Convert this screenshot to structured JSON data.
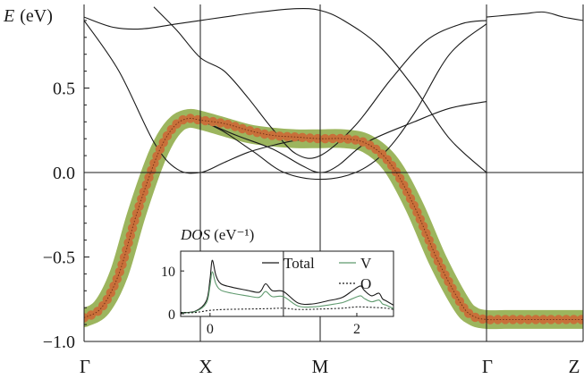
{
  "chart_data": [
    {
      "type": "line",
      "title": "",
      "xlabel": "",
      "ylabel_main": "E",
      "ylabel_unit": "(eV)",
      "ylim": [
        -1.0,
        0.92
      ],
      "grid": false,
      "k_points": [
        {
          "label": "Γ",
          "pos": 0.0
        },
        {
          "label": "X",
          "pos": 1.0
        },
        {
          "label": "M",
          "pos": 2.0
        },
        {
          "label": "Γ",
          "pos": 3.414
        },
        {
          "label": "Z",
          "pos": 4.4
        }
      ],
      "y_ticks": [
        {
          "value": 0.5,
          "label": "0.5"
        },
        {
          "value": 0.0,
          "label": "0.0"
        },
        {
          "value": -0.5,
          "label": "−0.5"
        },
        {
          "value": -1.0,
          "label": "−1.0"
        }
      ],
      "series": [
        {
          "kind": "fat-band",
          "color": "#9cb55e",
          "x": [
            0,
            0.15,
            0.3,
            0.45,
            0.6,
            0.7,
            0.8,
            0.9,
            1.0,
            1.2,
            1.4,
            1.6,
            1.8,
            2.0,
            2.2,
            2.4,
            2.6,
            2.8,
            3.0,
            3.2,
            3.3,
            3.414,
            3.6,
            4.0,
            4.4
          ],
          "y": [
            -0.86,
            -0.8,
            -0.6,
            -0.25,
            0.05,
            0.2,
            0.29,
            0.32,
            0.31,
            0.27,
            0.23,
            0.21,
            0.2,
            0.2,
            0.2,
            0.17,
            0.05,
            -0.2,
            -0.52,
            -0.78,
            -0.85,
            -0.87,
            -0.87,
            -0.87,
            -0.87
          ]
        },
        {
          "kind": "orbital-markers",
          "color": "#c8703a",
          "x": [
            0,
            0.15,
            0.3,
            0.45,
            0.6,
            0.7,
            0.8,
            0.9,
            1.0,
            1.2,
            1.4,
            1.6,
            1.8,
            2.0,
            2.2,
            2.4,
            2.6,
            2.8,
            3.0,
            3.2,
            3.3,
            3.414,
            3.6,
            4.0,
            4.4
          ],
          "y": [
            -0.86,
            -0.8,
            -0.6,
            -0.25,
            0.05,
            0.2,
            0.29,
            0.32,
            0.31,
            0.29,
            0.25,
            0.22,
            0.21,
            0.2,
            0.2,
            0.17,
            0.05,
            -0.2,
            -0.52,
            -0.78,
            -0.85,
            -0.87,
            -0.87,
            -0.87,
            -0.87
          ]
        },
        {
          "kind": "band",
          "x": [
            0,
            0.3,
            0.6,
            0.8,
            1.0,
            1.2,
            1.4,
            1.6,
            1.8,
            2.0
          ],
          "y": [
            0.9,
            0.6,
            0.18,
            0.02,
            0.0,
            0.06,
            0.12,
            0.16,
            0.19,
            0.2
          ]
        },
        {
          "kind": "band",
          "x": [
            0,
            0.25,
            0.5,
            0.8,
            1.0,
            1.2,
            1.5,
            1.8,
            2.0,
            2.2,
            2.5,
            2.8,
            3.1,
            3.414
          ],
          "y": [
            0.92,
            0.86,
            0.85,
            0.88,
            0.9,
            0.92,
            0.95,
            0.97,
            0.96,
            0.9,
            0.75,
            0.5,
            0.2,
            0.0
          ]
        },
        {
          "kind": "band",
          "x": [
            1.0,
            1.2,
            1.45,
            1.7,
            2.0,
            2.3,
            2.55,
            2.8,
            3.1,
            3.414
          ],
          "y": [
            0.31,
            0.24,
            0.12,
            0.0,
            -0.04,
            0.0,
            0.12,
            0.35,
            0.7,
            0.88
          ]
        },
        {
          "kind": "band",
          "x": [
            0.6,
            0.8,
            1.0,
            1.2,
            1.4,
            1.6,
            1.8,
            2.0,
            2.3,
            2.6,
            2.9,
            3.2,
            3.414
          ],
          "y": [
            0.98,
            0.84,
            0.68,
            0.6,
            0.44,
            0.26,
            0.11,
            0.1,
            0.28,
            0.55,
            0.78,
            0.88,
            0.9
          ]
        },
        {
          "kind": "band",
          "x": [
            1.0,
            1.3,
            1.6,
            1.85,
            2.0,
            2.15,
            2.4,
            2.8,
            3.1,
            3.414
          ],
          "y": [
            0.31,
            0.22,
            0.14,
            0.04,
            0.0,
            0.04,
            0.18,
            0.3,
            0.38,
            0.42
          ]
        },
        {
          "kind": "band",
          "x": [
            3.414,
            3.6,
            3.8,
            4.0,
            4.2,
            4.4
          ],
          "y": [
            0.92,
            0.93,
            0.94,
            0.95,
            0.92,
            0.9
          ]
        }
      ]
    },
    {
      "type": "line",
      "title": "",
      "ylabel_main": "DOS",
      "ylabel_unit": "(eV⁻¹)",
      "xlim": [
        -0.4,
        2.5
      ],
      "ylim": [
        0,
        14
      ],
      "x_ticks": [
        {
          "value": 0,
          "label": "0"
        },
        {
          "value": 2,
          "label": "2"
        }
      ],
      "y_ticks": [
        {
          "value": 0,
          "label": "0"
        },
        {
          "value": 10,
          "label": "10"
        }
      ],
      "legend": "top-right",
      "series": [
        {
          "name": "Total",
          "style": "solid",
          "color": "#1a1a1a",
          "x": [
            -0.4,
            -0.2,
            -0.05,
            0.0,
            0.03,
            0.08,
            0.15,
            0.3,
            0.5,
            0.65,
            0.7,
            0.76,
            0.85,
            1.0,
            1.2,
            1.4,
            1.6,
            1.8,
            1.95,
            2.05,
            2.1,
            2.2,
            2.3,
            2.35,
            2.4,
            2.5
          ],
          "y": [
            0.3,
            0.6,
            3.0,
            8.0,
            12.5,
            9.0,
            7.0,
            6.2,
            5.5,
            5.0,
            5.5,
            7.0,
            5.4,
            5.2,
            2.5,
            2.3,
            3.0,
            3.8,
            5.5,
            6.5,
            5.5,
            4.2,
            4.8,
            3.5,
            3.0,
            2.0
          ]
        },
        {
          "name": "V",
          "style": "solid",
          "color": "#5f9a6e",
          "x": [
            -0.4,
            -0.2,
            -0.05,
            0.0,
            0.03,
            0.08,
            0.15,
            0.3,
            0.5,
            0.65,
            0.7,
            0.76,
            0.85,
            1.0,
            1.2,
            1.4,
            1.6,
            1.8,
            1.95,
            2.05,
            2.1,
            2.2,
            2.3,
            2.35,
            2.4,
            2.5
          ],
          "y": [
            0.2,
            0.5,
            2.5,
            6.5,
            9.8,
            7.0,
            5.5,
            4.8,
            4.2,
            3.8,
            4.2,
            5.2,
            4.0,
            4.0,
            1.8,
            1.6,
            2.0,
            2.6,
            3.6,
            4.2,
            3.6,
            2.8,
            3.2,
            2.3,
            2.0,
            1.2
          ]
        },
        {
          "name": "O",
          "style": "dotted",
          "color": "#1a1a1a",
          "x": [
            -0.4,
            -0.2,
            0.0,
            0.2,
            0.5,
            0.8,
            1.0,
            1.2,
            1.5,
            1.8,
            2.0,
            2.2,
            2.4,
            2.5
          ],
          "y": [
            0.2,
            0.3,
            0.8,
            1.0,
            1.1,
            1.2,
            1.3,
            1.0,
            1.1,
            1.3,
            1.6,
            1.5,
            1.3,
            1.0
          ]
        }
      ]
    }
  ]
}
